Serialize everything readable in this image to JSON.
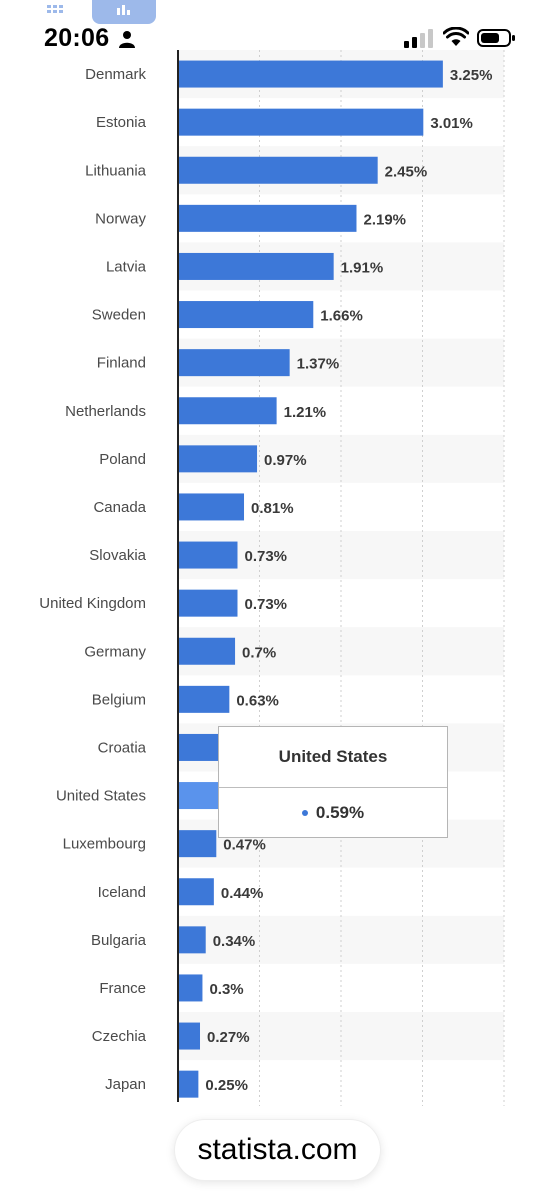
{
  "status_bar": {
    "time": "20:06"
  },
  "icons": {
    "tab_left": "grid-icon",
    "tab_right": "bar-chart-icon",
    "user": "person-icon",
    "signal": "cellular-signal-icon",
    "wifi": "wifi-icon",
    "battery": "battery-icon"
  },
  "colors": {
    "bar": "#3d78d8",
    "bar_highlight": "#5a93ec",
    "band": "#f7f7f7",
    "tooltip_dot": "#3d78d8"
  },
  "chart_data": {
    "type": "bar",
    "orientation": "horizontal",
    "categories": [
      "Denmark",
      "Estonia",
      "Lithuania",
      "Norway",
      "Latvia",
      "Sweden",
      "Finland",
      "Netherlands",
      "Poland",
      "Canada",
      "Slovakia",
      "United Kingdom",
      "Germany",
      "Belgium",
      "Croatia",
      "United States",
      "Luxembourg",
      "Iceland",
      "Bulgaria",
      "France",
      "Czechia",
      "Japan"
    ],
    "values": [
      3.25,
      3.01,
      2.45,
      2.19,
      1.91,
      1.66,
      1.37,
      1.21,
      0.97,
      0.81,
      0.73,
      0.73,
      0.7,
      0.63,
      0.58,
      0.59,
      0.47,
      0.44,
      0.34,
      0.3,
      0.27,
      0.25
    ],
    "value_labels": [
      "3.25%",
      "3.01%",
      "2.45%",
      "2.19%",
      "1.91%",
      "1.66%",
      "1.37%",
      "1.21%",
      "0.97%",
      "0.81%",
      "0.73%",
      "0.73%",
      "0.7%",
      "0.63%",
      "",
      "",
      "0.47%",
      "0.44%",
      "0.34%",
      "0.3%",
      "0.27%",
      "0.25%"
    ],
    "highlighted": "United States",
    "xlim": [
      0,
      4
    ],
    "grid": true
  },
  "tooltip": {
    "title": "United States",
    "value": "0.59%"
  },
  "footer": {
    "site": "statista.com"
  }
}
